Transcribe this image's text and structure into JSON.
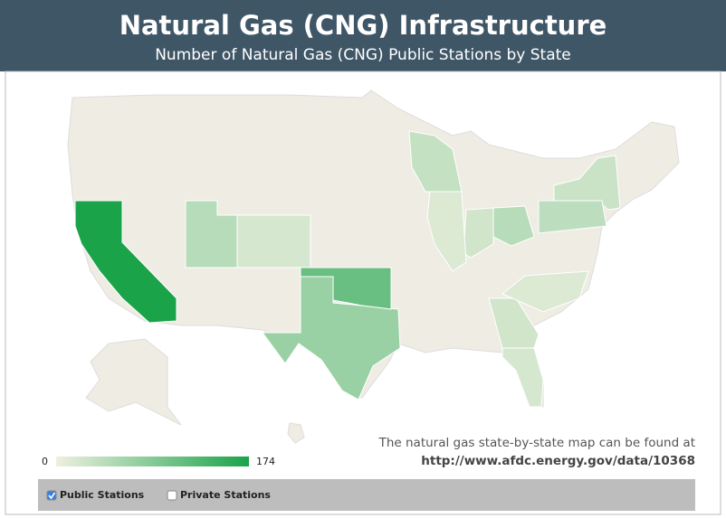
{
  "header": {
    "title": "Natural Gas (CNG) Infrastructure",
    "subtitle": "Number of Natural Gas (CNG) Public Stations by State"
  },
  "map": {
    "legend": {
      "min": 0,
      "max": 174,
      "low_color": "#eef0e0",
      "high_color": "#1ba34a"
    },
    "base_color": "#efece4",
    "state_values": [
      174,
      70,
      110,
      45,
      20,
      35,
      30,
      40,
      45,
      25,
      15,
      25,
      15,
      20
    ]
  },
  "note": {
    "text": "The natural gas state-by-state map can be found at",
    "url": "http://www.afdc.energy.gov/data/10368"
  },
  "filters": [
    {
      "label": "Public Stations",
      "checked": true
    },
    {
      "label": "Private Stations",
      "checked": false
    }
  ]
}
